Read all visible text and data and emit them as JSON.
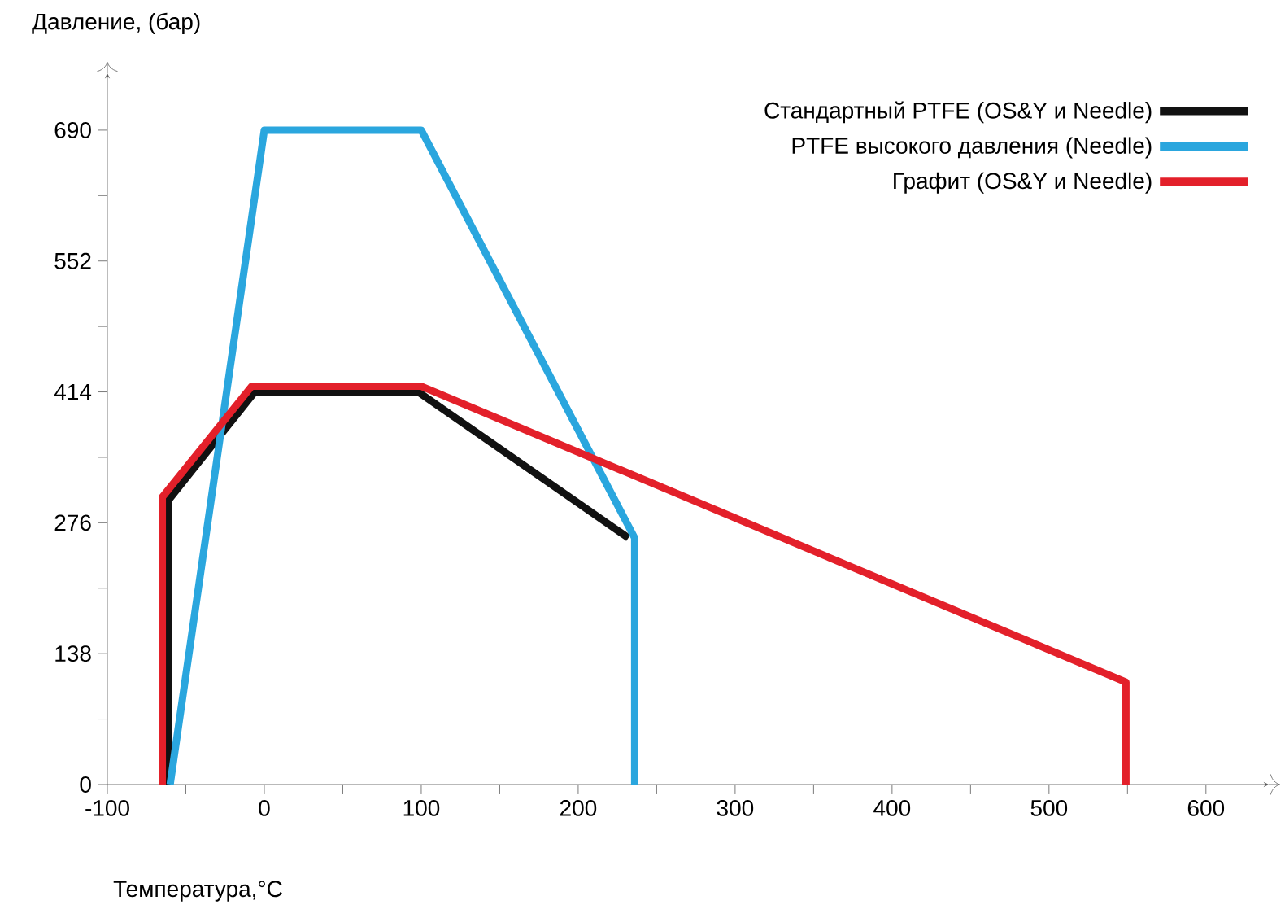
{
  "chart_data": {
    "type": "line",
    "xlabel": "Температура,°C",
    "ylabel": "Давление, (бар)",
    "series": [
      {
        "name": "Стандартный PTFE (OS&Y и Needle)",
        "color": "#111111",
        "x": [
          -61,
          -61,
          -6,
          98,
          232
        ],
        "values": [
          0,
          300,
          414,
          414,
          260
        ]
      },
      {
        "name": "PTFE высокого давления (Needle)",
        "color": "#2aa6de",
        "x": [
          -60,
          0,
          100,
          236,
          236
        ],
        "values": [
          0,
          690,
          690,
          260,
          0
        ]
      },
      {
        "name": "Графит (OS&Y и Needle)",
        "color": "#e3202a",
        "x": [
          -65,
          -65,
          -8,
          100,
          549,
          549
        ],
        "values": [
          0,
          303,
          420,
          420,
          108,
          0
        ]
      }
    ],
    "xlim": [
      -100,
      640
    ],
    "ylim": [
      0,
      750
    ],
    "xticks": [
      -100,
      {
        "value": -50,
        "label": null
      },
      0,
      {
        "value": 50,
        "label": null
      },
      100,
      {
        "value": 150,
        "label": null
      },
      200,
      {
        "value": 250,
        "label": null
      },
      300,
      {
        "value": 350,
        "label": null
      },
      400,
      {
        "value": 450,
        "label": null
      },
      500,
      {
        "value": 550,
        "label": null
      },
      600
    ],
    "yticks": [
      0,
      {
        "value": 69,
        "label": null
      },
      138,
      {
        "value": 207,
        "label": null
      },
      276,
      {
        "value": 345,
        "label": null
      },
      414,
      {
        "value": 483,
        "label": null
      },
      552,
      {
        "value": 621,
        "label": null
      },
      690
    ],
    "grid": false,
    "legend": "top right",
    "marker": "none",
    "line_style": "solid"
  }
}
